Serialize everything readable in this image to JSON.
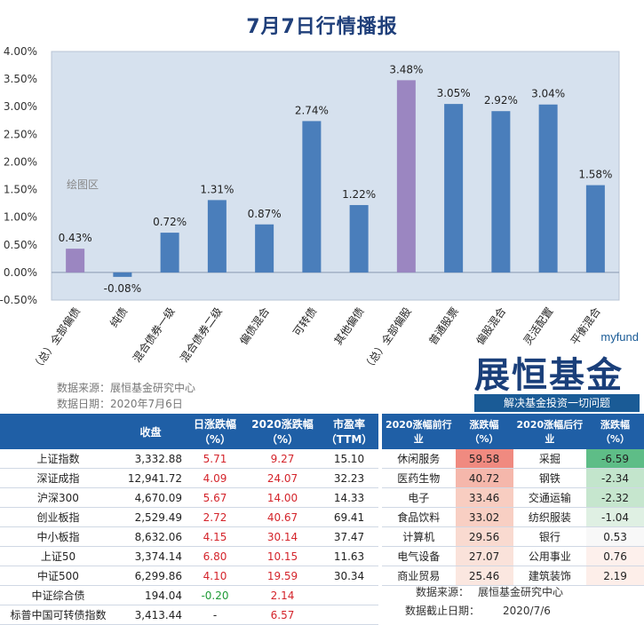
{
  "page": {
    "title": "7月7日行情播报"
  },
  "chart_data": {
    "type": "bar",
    "title": "7月7日行情播报",
    "categories": [
      "（总）全部偏债",
      "纯债",
      "混合债券一级",
      "混合债券二级",
      "偏债混合",
      "可转债",
      "其他偏债",
      "（总）全部偏股",
      "普通股票",
      "偏股混合",
      "灵活配置",
      "平衡混合"
    ],
    "values": [
      0.43,
      -0.08,
      0.72,
      1.31,
      0.87,
      2.74,
      1.22,
      3.48,
      3.05,
      2.92,
      3.04,
      1.58
    ],
    "value_labels": [
      "0.43%",
      "-0.08%",
      "0.72%",
      "1.31%",
      "0.87%",
      "2.74%",
      "1.22%",
      "3.48%",
      "3.05%",
      "2.92%",
      "3.04%",
      "1.58%"
    ],
    "highlight": [
      true,
      false,
      false,
      false,
      false,
      false,
      false,
      true,
      false,
      false,
      false,
      false
    ],
    "ylim": [
      -0.5,
      4.0
    ],
    "yticks": [
      -0.5,
      0,
      0.5,
      1.0,
      1.5,
      2.0,
      2.5,
      3.0,
      3.5,
      4.0
    ],
    "ytick_labels": [
      "-0.50%",
      "0.00%",
      "0.50%",
      "1.00%",
      "1.50%",
      "2.00%",
      "2.50%",
      "3.00%",
      "3.50%",
      "4.00%"
    ],
    "plot_area_label": "绘图区",
    "colors": {
      "bar": "#4a7ebb",
      "highlight": "#9b86c1",
      "plot_bg": "#d6e1ee"
    }
  },
  "source": {
    "line1": "数据来源：展恒基金研究中心",
    "line2": "数据日期：2020年7月6日"
  },
  "logo": {
    "brand": "myfund",
    "name": "展恒基金",
    "slogan": "解决基金投资一切问题"
  },
  "left_table": {
    "headers": [
      "",
      "收盘",
      "日涨跌幅（%）",
      "2020涨跌幅（%）",
      "市盈率（TTM）"
    ],
    "rows": [
      {
        "name": "上证指数",
        "close": "3,332.88",
        "daily": "5.71",
        "ytd": "9.27",
        "pe": "15.10"
      },
      {
        "name": "深证成指",
        "close": "12,941.72",
        "daily": "4.09",
        "ytd": "24.07",
        "pe": "32.23"
      },
      {
        "name": "沪深300",
        "close": "4,670.09",
        "daily": "5.67",
        "ytd": "14.00",
        "pe": "14.33"
      },
      {
        "name": "创业板指",
        "close": "2,529.49",
        "daily": "2.72",
        "ytd": "40.67",
        "pe": "69.41"
      },
      {
        "name": "中小板指",
        "close": "8,632.06",
        "daily": "4.15",
        "ytd": "30.14",
        "pe": "37.47"
      },
      {
        "name": "上证50",
        "close": "3,374.14",
        "daily": "6.80",
        "ytd": "10.15",
        "pe": "11.63"
      },
      {
        "name": "中证500",
        "close": "6,299.86",
        "daily": "4.10",
        "ytd": "19.59",
        "pe": "30.34"
      },
      {
        "name": "中证综合债",
        "close": "194.04",
        "daily": "-0.20",
        "ytd": "2.14",
        "pe": ""
      },
      {
        "name": "标普中国可转债指数",
        "close": "3,413.44",
        "daily": "-",
        "ytd": "6.57",
        "pe": ""
      }
    ]
  },
  "right_table": {
    "headers": [
      "2020涨幅前行业",
      "涨跌幅（%）",
      "2020涨幅后行业",
      "涨跌幅（%）"
    ],
    "rows": [
      {
        "top": "休闲服务",
        "top_val": "59.58",
        "top_color": "#f08a80",
        "bot": "采掘",
        "bot_val": "-6.59",
        "bot_color": "#5ebd87"
      },
      {
        "top": "医药生物",
        "top_val": "40.72",
        "top_color": "#f5b7ab",
        "bot": "钢铁",
        "bot_val": "-2.34",
        "bot_color": "#c3e5cc"
      },
      {
        "top": "电子",
        "top_val": "33.46",
        "top_color": "#f8cdc1",
        "bot": "交通运输",
        "bot_val": "-2.32",
        "bot_color": "#c6e6ce"
      },
      {
        "top": "食品饮料",
        "top_val": "33.02",
        "top_color": "#f8cfc3",
        "bot": "纺织服装",
        "bot_val": "-1.04",
        "bot_color": "#dff0e3"
      },
      {
        "top": "计算机",
        "top_val": "29.56",
        "top_color": "#f9dad0",
        "bot": "银行",
        "bot_val": "0.53",
        "bot_color": "#f8f8f8"
      },
      {
        "top": "电气设备",
        "top_val": "27.07",
        "top_color": "#fae2da",
        "bot": "公用事业",
        "bot_val": "0.76",
        "bot_color": "#fdf0ec"
      },
      {
        "top": "商业贸易",
        "top_val": "25.46",
        "top_color": "#fbe7e0",
        "bot": "建筑装饰",
        "bot_val": "2.19",
        "bot_color": "#fdeee9"
      }
    ],
    "footer1_label": "数据来源：",
    "footer1_value": "展恒基金研究中心",
    "footer2_label": "数据截止日期：",
    "footer2_value": "2020/7/6"
  }
}
